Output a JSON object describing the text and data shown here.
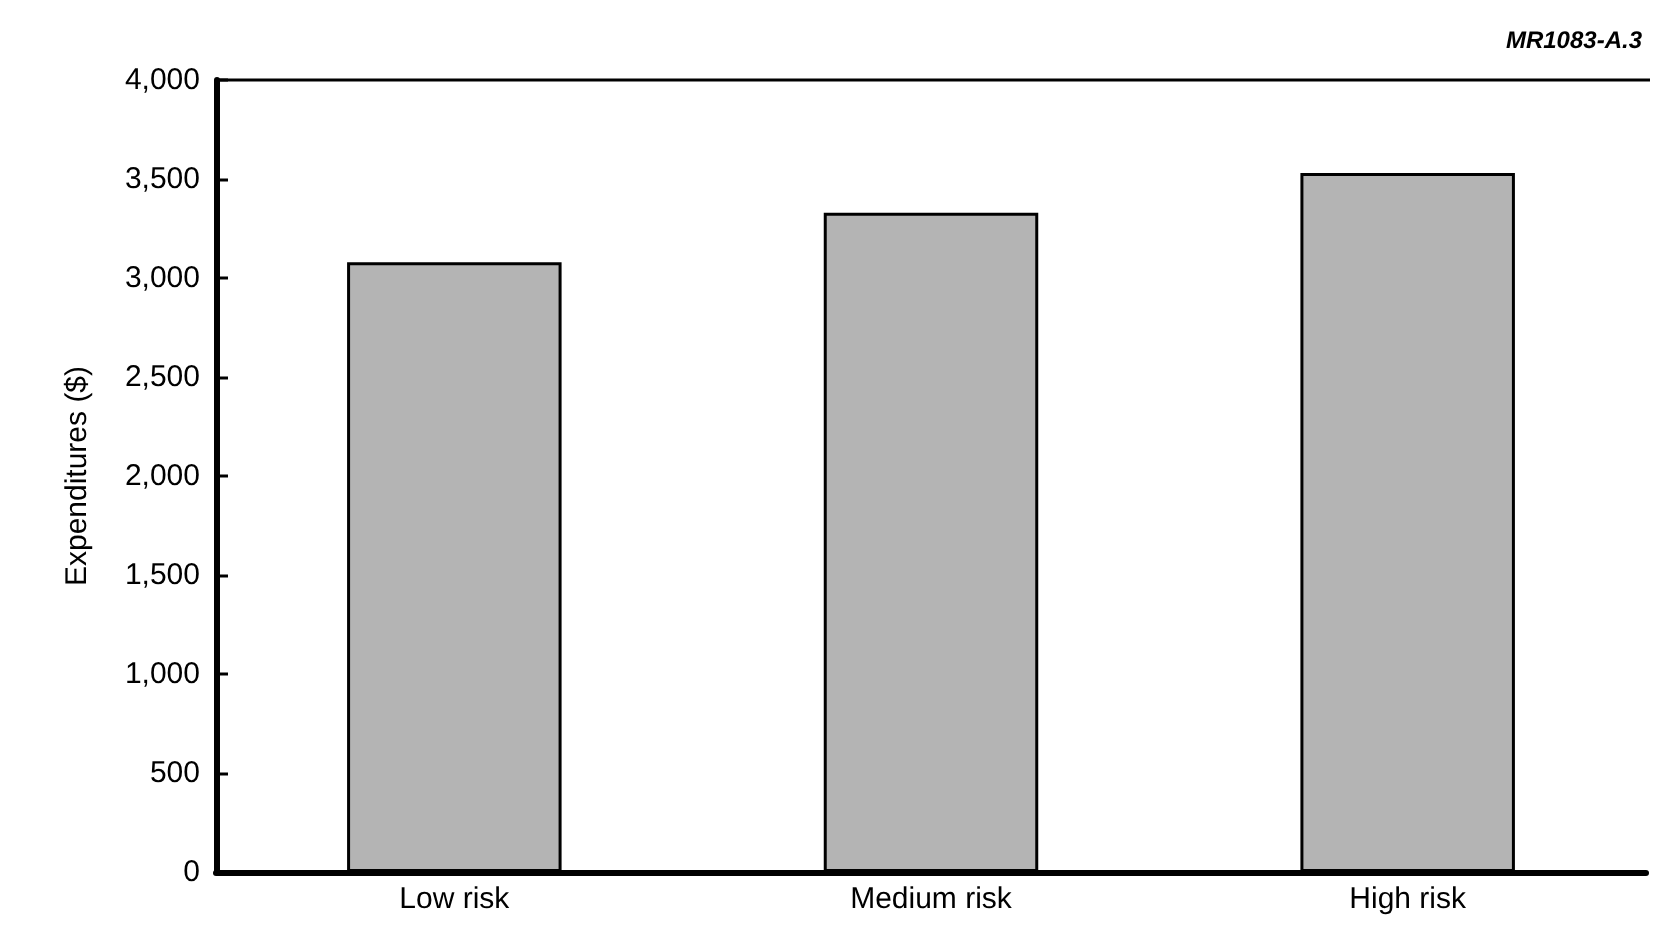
{
  "chart_data": {
    "type": "bar",
    "ylabel": "Expenditures ($)",
    "categories": [
      "Low risk",
      "Medium risk",
      "High risk"
    ],
    "values": [
      3080,
      3330,
      3530
    ],
    "color": "#b4b4b4",
    "ylim": [
      0,
      4000
    ],
    "yticks": [
      0,
      500,
      {
        "value": 1000,
        "label": "1,000"
      },
      {
        "value": 1500,
        "label": "1,500"
      },
      {
        "value": 2000,
        "label": "2,000"
      },
      {
        "value": 2500,
        "label": "2,500"
      },
      {
        "value": 3000,
        "label": "3,000"
      },
      {
        "value": 3500,
        "label": "3,500"
      },
      {
        "value": 4000,
        "label": "4,000"
      }
    ],
    "grid": false,
    "annotations": [
      "MR1083-A.3"
    ]
  }
}
